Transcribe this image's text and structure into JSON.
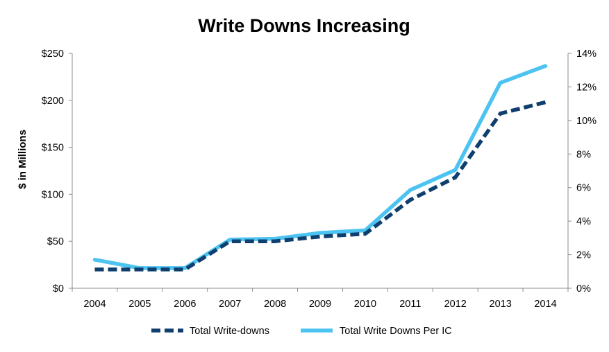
{
  "chart_data": {
    "type": "line",
    "title": "Write Downs Increasing",
    "xlabel": "",
    "ylabel": "$ in Millions",
    "y2label": "",
    "categories": [
      "2004",
      "2005",
      "2006",
      "2007",
      "2008",
      "2009",
      "2010",
      "2011",
      "2012",
      "2013",
      "2014"
    ],
    "ylim": [
      0,
      250
    ],
    "yticks": [
      "$0",
      "$50",
      "$100",
      "$150",
      "$200",
      "$250"
    ],
    "ytick_values": [
      0,
      50,
      100,
      150,
      200,
      250
    ],
    "y2lim": [
      0,
      14
    ],
    "y2ticks": [
      "0%",
      "2%",
      "4%",
      "6%",
      "8%",
      "10%",
      "12%",
      "14%"
    ],
    "y2tick_values": [
      0,
      2,
      4,
      6,
      8,
      10,
      12,
      14
    ],
    "grid": false,
    "legend_position": "bottom",
    "series": [
      {
        "name": "Total Write-downs",
        "axis": "left",
        "style": "dashed",
        "color": "#0f3f6e",
        "values": [
          20,
          20,
          20,
          50,
          50,
          55,
          58,
          94,
          118,
          186,
          198
        ]
      },
      {
        "name": "Total Write Downs Per IC",
        "axis": "right",
        "style": "solid",
        "color": "#4cc3f1",
        "values": [
          1.7,
          1.2,
          1.2,
          2.9,
          2.95,
          3.3,
          3.45,
          5.85,
          7.05,
          12.25,
          13.25
        ]
      }
    ]
  }
}
